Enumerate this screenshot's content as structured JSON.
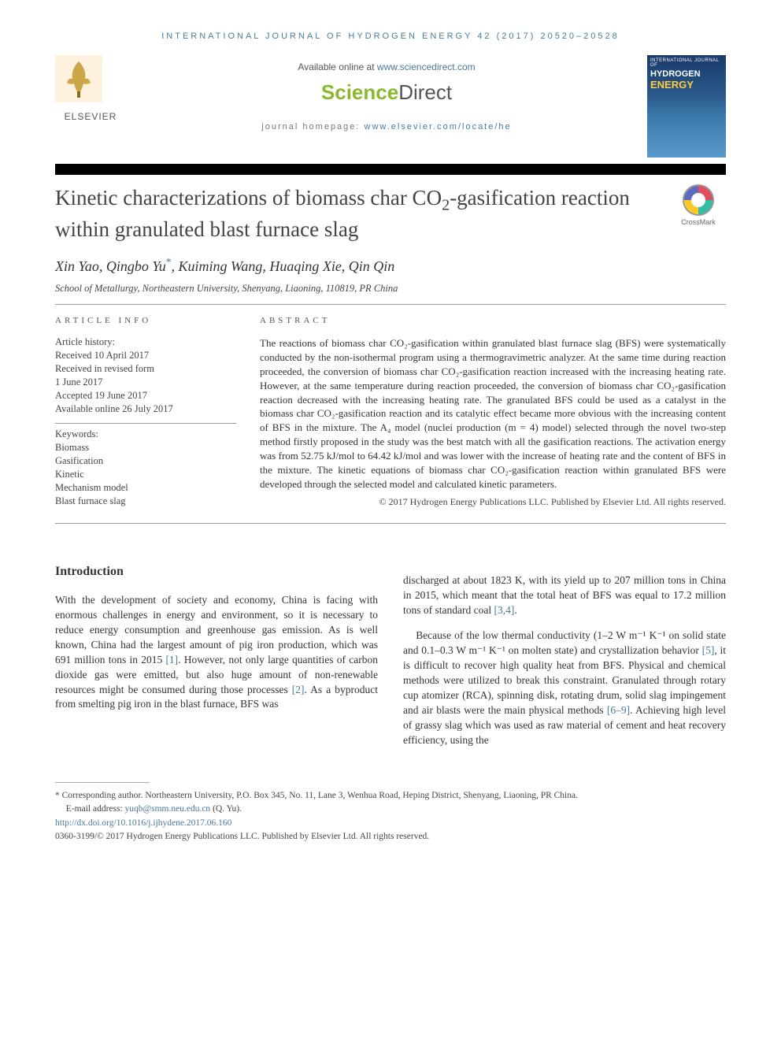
{
  "journal_header": "INTERNATIONAL JOURNAL OF HYDROGEN ENERGY 42 (2017) 20520–20528",
  "available_text": "Available online at ",
  "available_link": "www.sciencedirect.com",
  "sd_logo_1": "Science",
  "sd_logo_2": "Direct",
  "homepage_text": "journal homepage: ",
  "homepage_link": "www.elsevier.com/locate/he",
  "publisher_name": "ELSEVIER",
  "cover": {
    "line1": "INTERNATIONAL JOURNAL OF",
    "line2": "HYDROGEN",
    "line3": "ENERGY"
  },
  "title_pre": "Kinetic characterizations of biomass char CO",
  "title_sub": "2",
  "title_post": "-gasification reaction within granulated blast furnace slag",
  "crossmark_label": "CrossMark",
  "authors_html": "Xin Yao, Qingbo Yu",
  "authors_star": "*",
  "authors_rest": ", Kuiming Wang, Huaqing Xie, Qin Qin",
  "affiliation": "School of Metallurgy, Northeastern University, Shenyang, Liaoning, 110819, PR China",
  "info_heading": "ARTICLE INFO",
  "history_label": "Article history:",
  "history": [
    "Received 10 April 2017",
    "Received in revised form",
    "1 June 2017",
    "Accepted 19 June 2017",
    "Available online 26 July 2017"
  ],
  "keywords_label": "Keywords:",
  "keywords": [
    "Biomass",
    "Gasification",
    "Kinetic",
    "Mechanism model",
    "Blast furnace slag"
  ],
  "abstract_heading": "ABSTRACT",
  "abstract_text": "The reactions of biomass char CO₂-gasification within granulated blast furnace slag (BFS) were systematically conducted by the non-isothermal program using a thermogravimetric analyzer. At the same time during reaction proceeded, the conversion of biomass char CO₂-gasification reaction increased with the increasing heating rate. However, at the same temperature during reaction proceeded, the conversion of biomass char CO₂-gasification reaction decreased with the increasing heating rate. The granulated BFS could be used as a catalyst in the biomass char CO₂-gasification reaction and its catalytic effect became more obvious with the increasing content of BFS in the mixture. The A₄ model (nuclei production (m = 4) model) selected through the novel two-step method firstly proposed in the study was the best match with all the gasification reactions. The activation energy was from 52.75 kJ/mol to 64.42 kJ/mol and was lower with the increase of heating rate and the content of BFS in the mixture. The kinetic equations of biomass char CO₂-gasification reaction within granulated BFS were developed through the selected model and calculated kinetic parameters.",
  "copyright": "© 2017 Hydrogen Energy Publications LLC. Published by Elsevier Ltd. All rights reserved.",
  "section_heading": "Introduction",
  "col1_p1_a": "With the development of society and economy, China is facing with enormous challenges in energy and environment, so it is necessary to reduce energy consumption and greenhouse gas emission. As is well known, China had the largest amount of pig iron production, which was 691 million tons in 2015 ",
  "col1_ref1": "[1]",
  "col1_p1_b": ". However, not only large quantities of carbon dioxide gas were emitted, but also huge amount of non-renewable resources might be consumed during those processes ",
  "col1_ref2": "[2]",
  "col1_p1_c": ". As a byproduct from smelting pig iron in the blast furnace, BFS was",
  "col2_p1": "discharged at about 1823 K, with its yield up to 207 million tons in China in 2015, which meant that the total heat of BFS was equal to 17.2 million tons of standard coal ",
  "col2_ref34": "[3,4]",
  "col2_p1_end": ".",
  "col2_p2_a": "Because of the low thermal conductivity (1–2 W m⁻¹ K⁻¹ on solid state and 0.1–0.3 W m⁻¹ K⁻¹ on molten state) and crystallization behavior ",
  "col2_ref5": "[5]",
  "col2_p2_b": ", it is difficult to recover high quality heat from BFS. Physical and chemical methods were utilized to break this constraint. Granulated through rotary cup atomizer (RCA), spinning disk, rotating drum, solid slag impingement and air blasts were the main physical methods ",
  "col2_ref69": "[6–9]",
  "col2_p2_c": ". Achieving high level of grassy slag which was used as raw material of cement and heat recovery efficiency, using the",
  "footnotes": {
    "corresp_label": "* Corresponding author.",
    "corresp_text": " Northeastern University, P.O. Box 345, No. 11, Lane 3, Wenhua Road, Heping District, Shenyang, Liaoning, PR China.",
    "email_label": "E-mail address: ",
    "email": "yuqb@smm.neu.edu.cn",
    "email_suffix": " (Q. Yu).",
    "doi": "http://dx.doi.org/10.1016/j.ijhydene.2017.06.160",
    "issn_line": "0360-3199/© 2017 Hydrogen Energy Publications LLC. Published by Elsevier Ltd. All rights reserved."
  }
}
